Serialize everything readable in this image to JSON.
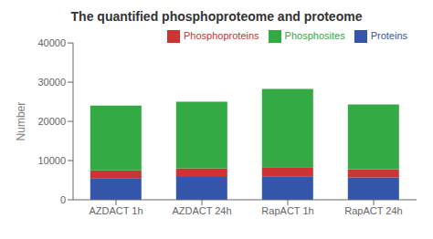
{
  "chart_data": {
    "type": "bar",
    "title": "The quantified phosphoproteome and proteome",
    "y_label": "Number",
    "categories": [
      "AZDACT 1h",
      "AZDACT 24h",
      "RapACT 1h",
      "RapACT 24h"
    ],
    "series": [
      {
        "name": "Proteins",
        "color": "#3355aa",
        "values": [
          5500,
          5800,
          6000,
          5700
        ]
      },
      {
        "name": "Phosphoproteins",
        "color": "#cc3333",
        "values": [
          2000,
          2200,
          2300,
          2100
        ]
      },
      {
        "name": "Phosphosites",
        "color": "#33aa44",
        "values": [
          16500,
          17000,
          20000,
          16500
        ]
      }
    ],
    "stacked": true,
    "ylim": [
      0,
      40000
    ],
    "yticks": [
      0,
      10000,
      20000,
      30000,
      40000
    ],
    "grid": false,
    "legend": "upper right"
  }
}
